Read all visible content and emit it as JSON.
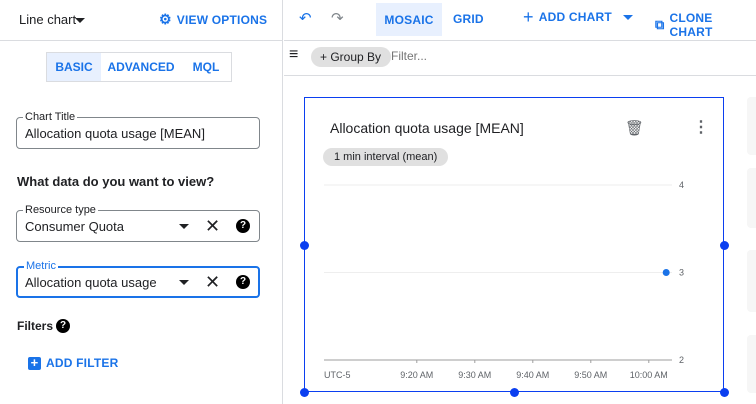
{
  "left_panel": {
    "chart_type": "Line chart",
    "view_options": "VIEW OPTIONS",
    "modes": [
      "BASIC",
      "ADVANCED",
      "MQL"
    ],
    "chart_title_label": "Chart Title",
    "chart_title_value": "Allocation quota usage [MEAN]",
    "question": "What data do you want to view?",
    "resource_type_label": "Resource type",
    "resource_type_value": "Consumer Quota",
    "metric_label": "Metric",
    "metric_value": "Allocation quota usage",
    "filters_label": "Filters",
    "add_filter": "ADD FILTER"
  },
  "toolbar": {
    "mosaic": "MOSAIC",
    "grid": "GRID",
    "add_chart": "ADD CHART",
    "clone_chart": "CLONE CHART"
  },
  "filter_bar": {
    "group_by": "+ Group By",
    "filter_placeholder": "Filter..."
  },
  "chart_card": {
    "title": "Allocation quota usage [MEAN]",
    "interval_chip": "1 min interval (mean)",
    "timezone": "UTC-5"
  },
  "colors": {
    "accent": "#1a73e8",
    "selection": "#0b3ff0",
    "series": "#1a73e8"
  },
  "chart_data": {
    "type": "line",
    "x_ticks": [
      "9:20 AM",
      "9:30 AM",
      "9:40 AM",
      "9:50 AM",
      "10:00 AM"
    ],
    "y_ticks": [
      "2",
      "3",
      "4"
    ],
    "ylim": [
      2,
      4
    ],
    "xlim": [
      "9:04 AM",
      "10:04 AM"
    ],
    "grid": true,
    "series": [
      {
        "points": [
          {
            "x": "10:03 AM",
            "y": 3
          }
        ]
      }
    ]
  }
}
